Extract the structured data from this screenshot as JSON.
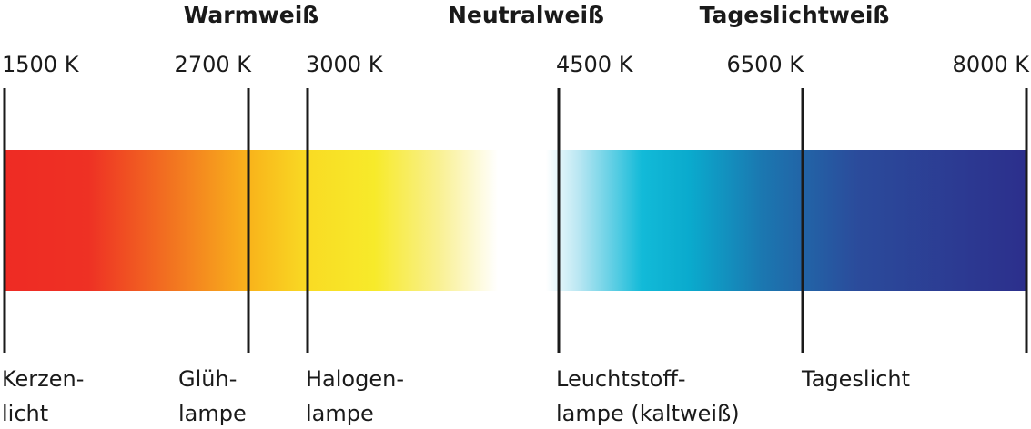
{
  "headings": [
    "Warmweiß",
    "Neutralweiß",
    "Tageslichtweiß"
  ],
  "markers": [
    {
      "label": "1500 K",
      "lamp": [
        "Kerzen-",
        "licht"
      ]
    },
    {
      "label": "2700 K",
      "lamp": [
        "Glüh-",
        "lampe"
      ]
    },
    {
      "label": "3000 K",
      "lamp": [
        "Halogen-",
        "lampe"
      ]
    },
    {
      "label": "4500 K",
      "lamp": [
        "Leuchtstoff-",
        "lampe (kaltweiß)"
      ]
    },
    {
      "label": "6500 K",
      "lamp": [
        "Tageslicht"
      ]
    },
    {
      "label": "8000 K",
      "lamp": []
    }
  ]
}
